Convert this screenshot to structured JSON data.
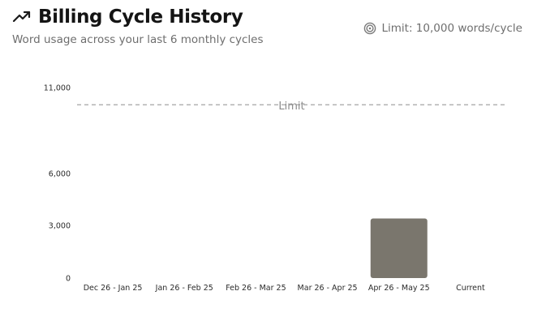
{
  "header": {
    "title": "Billing Cycle History",
    "subtitle": "Word usage across your last 6 monthly cycles",
    "title_icon": "trending-up-icon"
  },
  "limit_badge": {
    "text": "Limit: 10,000 words/cycle",
    "icon": "target-icon"
  },
  "colors": {
    "bar": "#7a766d",
    "limit_line": "#9a9a9a",
    "text_primary": "#141414",
    "text_muted": "#6e6e6e"
  },
  "chart_data": {
    "type": "bar",
    "title": "Billing Cycle History",
    "subtitle": "Word usage across your last 6 monthly cycles",
    "categories": [
      "Dec 26 - Jan 25",
      "Jan 26 - Feb 25",
      "Feb 26 - Mar 25",
      "Mar 26 - Apr 25",
      "Apr 26 - May 25",
      "Current"
    ],
    "values": [
      0,
      0,
      0,
      0,
      3400,
      0
    ],
    "ylim": [
      0,
      11000
    ],
    "yticks": [
      0,
      3000,
      6000,
      11000
    ],
    "ytick_labels": [
      "0",
      "3,000",
      "6,000",
      "11,000"
    ],
    "reference_line": {
      "value": 10000,
      "label": "Limit",
      "style": "dashed"
    },
    "grid": false,
    "legend": "none",
    "xlabel": "",
    "ylabel": ""
  }
}
